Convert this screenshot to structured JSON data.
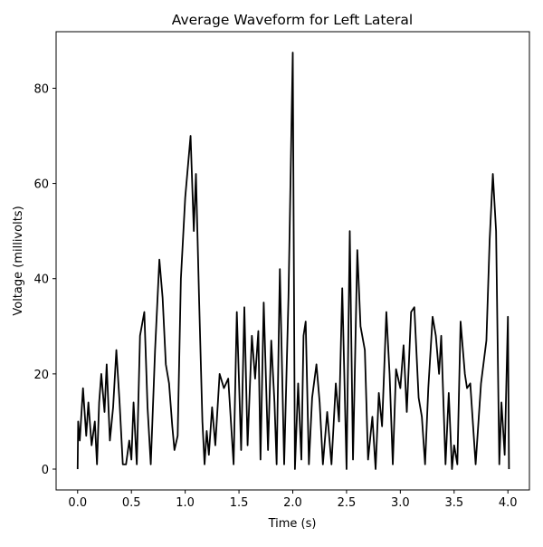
{
  "chart_data": {
    "type": "line",
    "title": "Average Waveform for Left Lateral",
    "x_label": "Time (s)",
    "y_label": "Voltage (millivolts)",
    "x": [
      0.0,
      0.005,
      0.02,
      0.05,
      0.08,
      0.1,
      0.13,
      0.16,
      0.18,
      0.2,
      0.22,
      0.25,
      0.27,
      0.3,
      0.33,
      0.36,
      0.39,
      0.42,
      0.45,
      0.48,
      0.5,
      0.52,
      0.55,
      0.58,
      0.62,
      0.65,
      0.68,
      0.72,
      0.76,
      0.79,
      0.82,
      0.85,
      0.88,
      0.9,
      0.93,
      0.96,
      1.0,
      1.05,
      1.08,
      1.1,
      1.13,
      1.16,
      1.18,
      1.2,
      1.22,
      1.25,
      1.28,
      1.32,
      1.36,
      1.4,
      1.45,
      1.48,
      1.52,
      1.55,
      1.58,
      1.62,
      1.65,
      1.68,
      1.7,
      1.73,
      1.77,
      1.8,
      1.83,
      1.85,
      1.88,
      1.92,
      1.96,
      2.0,
      2.02,
      2.05,
      2.08,
      2.1,
      2.12,
      2.15,
      2.18,
      2.22,
      2.25,
      2.28,
      2.32,
      2.36,
      2.4,
      2.43,
      2.46,
      2.5,
      2.53,
      2.56,
      2.6,
      2.63,
      2.67,
      2.7,
      2.74,
      2.77,
      2.8,
      2.83,
      2.87,
      2.9,
      2.93,
      2.96,
      3.0,
      3.03,
      3.06,
      3.1,
      3.13,
      3.17,
      3.2,
      3.23,
      3.26,
      3.3,
      3.33,
      3.36,
      3.38,
      3.42,
      3.45,
      3.48,
      3.5,
      3.53,
      3.56,
      3.6,
      3.62,
      3.65,
      3.7,
      3.75,
      3.8,
      3.83,
      3.86,
      3.89,
      3.92,
      3.94,
      3.97,
      4.0,
      4.01
    ],
    "series": [
      {
        "color": "#000000",
        "values": [
          0,
          10,
          6,
          17,
          7,
          14,
          5,
          10,
          1,
          14,
          20,
          12,
          22,
          6,
          13,
          25,
          14,
          1,
          1,
          6,
          2,
          14,
          1,
          28,
          33,
          13,
          1,
          25,
          44,
          36,
          22,
          18,
          9,
          4,
          7,
          40,
          57,
          70,
          50,
          62,
          35,
          10,
          1,
          8,
          3,
          13,
          5,
          20,
          17,
          19,
          1,
          33,
          4,
          34,
          5,
          28,
          19,
          29,
          2,
          35,
          4,
          27,
          14,
          1,
          42,
          1,
          36,
          87.5,
          0,
          18,
          2,
          28,
          31,
          1,
          15,
          22,
          14,
          1,
          12,
          1,
          18,
          10,
          38,
          0,
          50,
          2,
          46,
          30,
          25,
          2,
          11,
          0,
          16,
          9,
          33,
          20,
          1,
          21,
          17,
          26,
          12,
          33,
          34,
          15,
          11,
          1,
          17,
          32,
          28,
          20,
          28,
          1,
          16,
          0,
          5,
          1,
          31,
          20,
          17,
          18,
          1,
          18,
          27,
          48,
          62,
          50,
          1,
          14,
          3,
          32,
          0
        ]
      }
    ],
    "xlim": [
      -0.2,
      4.2
    ],
    "ylim": [
      -4.375,
      91.875
    ],
    "xticks": [
      {
        "value": 0,
        "label": "0.0"
      },
      0.5,
      {
        "value": 1,
        "label": "1.0"
      },
      1.5,
      {
        "value": 2,
        "label": "2.0"
      },
      2.5,
      {
        "value": 3,
        "label": "3.0"
      },
      3.5,
      {
        "value": 4,
        "label": "4.0"
      }
    ],
    "yticks": [
      0,
      20,
      40,
      60,
      80
    ]
  }
}
